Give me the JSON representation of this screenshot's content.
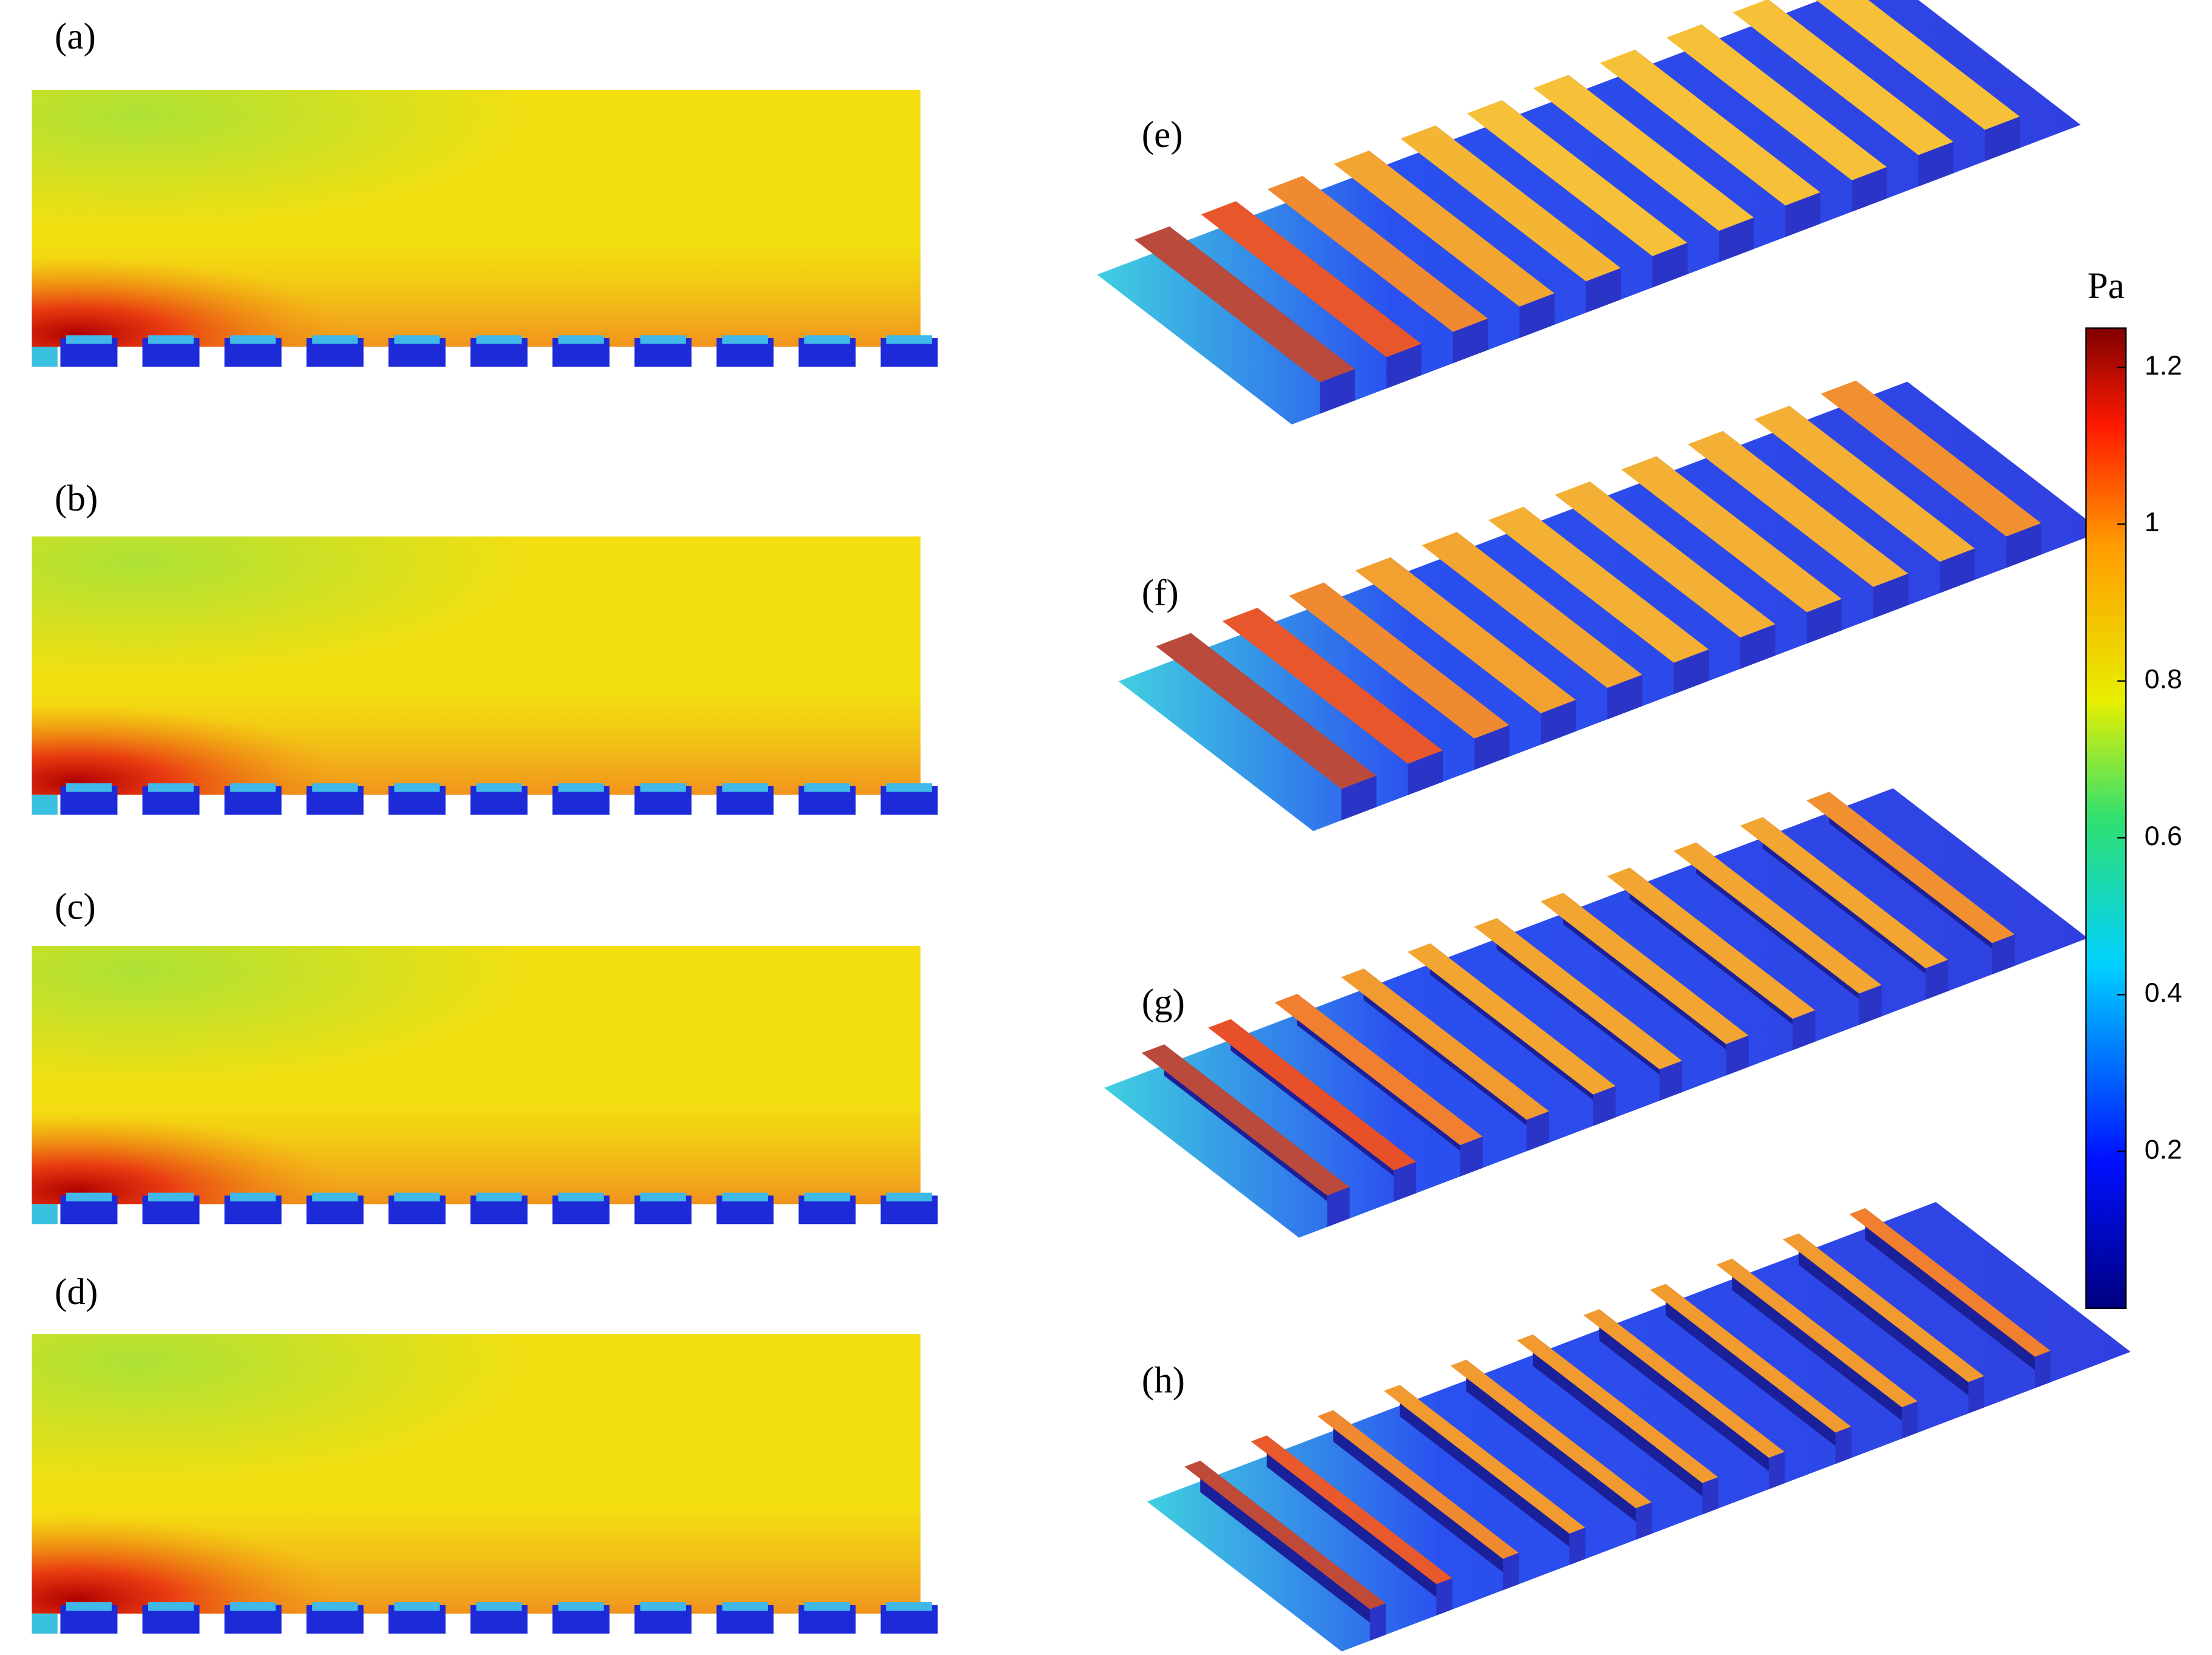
{
  "panels": [
    {
      "label": "(a)"
    },
    {
      "label": "(b)"
    },
    {
      "label": "(c)"
    },
    {
      "label": "(d)"
    },
    {
      "label": "(e)"
    },
    {
      "label": "(f)"
    },
    {
      "label": "(g)"
    },
    {
      "label": "(h)"
    }
  ],
  "colorbar": {
    "title": "Pa",
    "ylim": [
      0,
      1.25
    ],
    "yticks": [
      0.2,
      0.4,
      0.6,
      0.8,
      1,
      1.2
    ]
  }
}
